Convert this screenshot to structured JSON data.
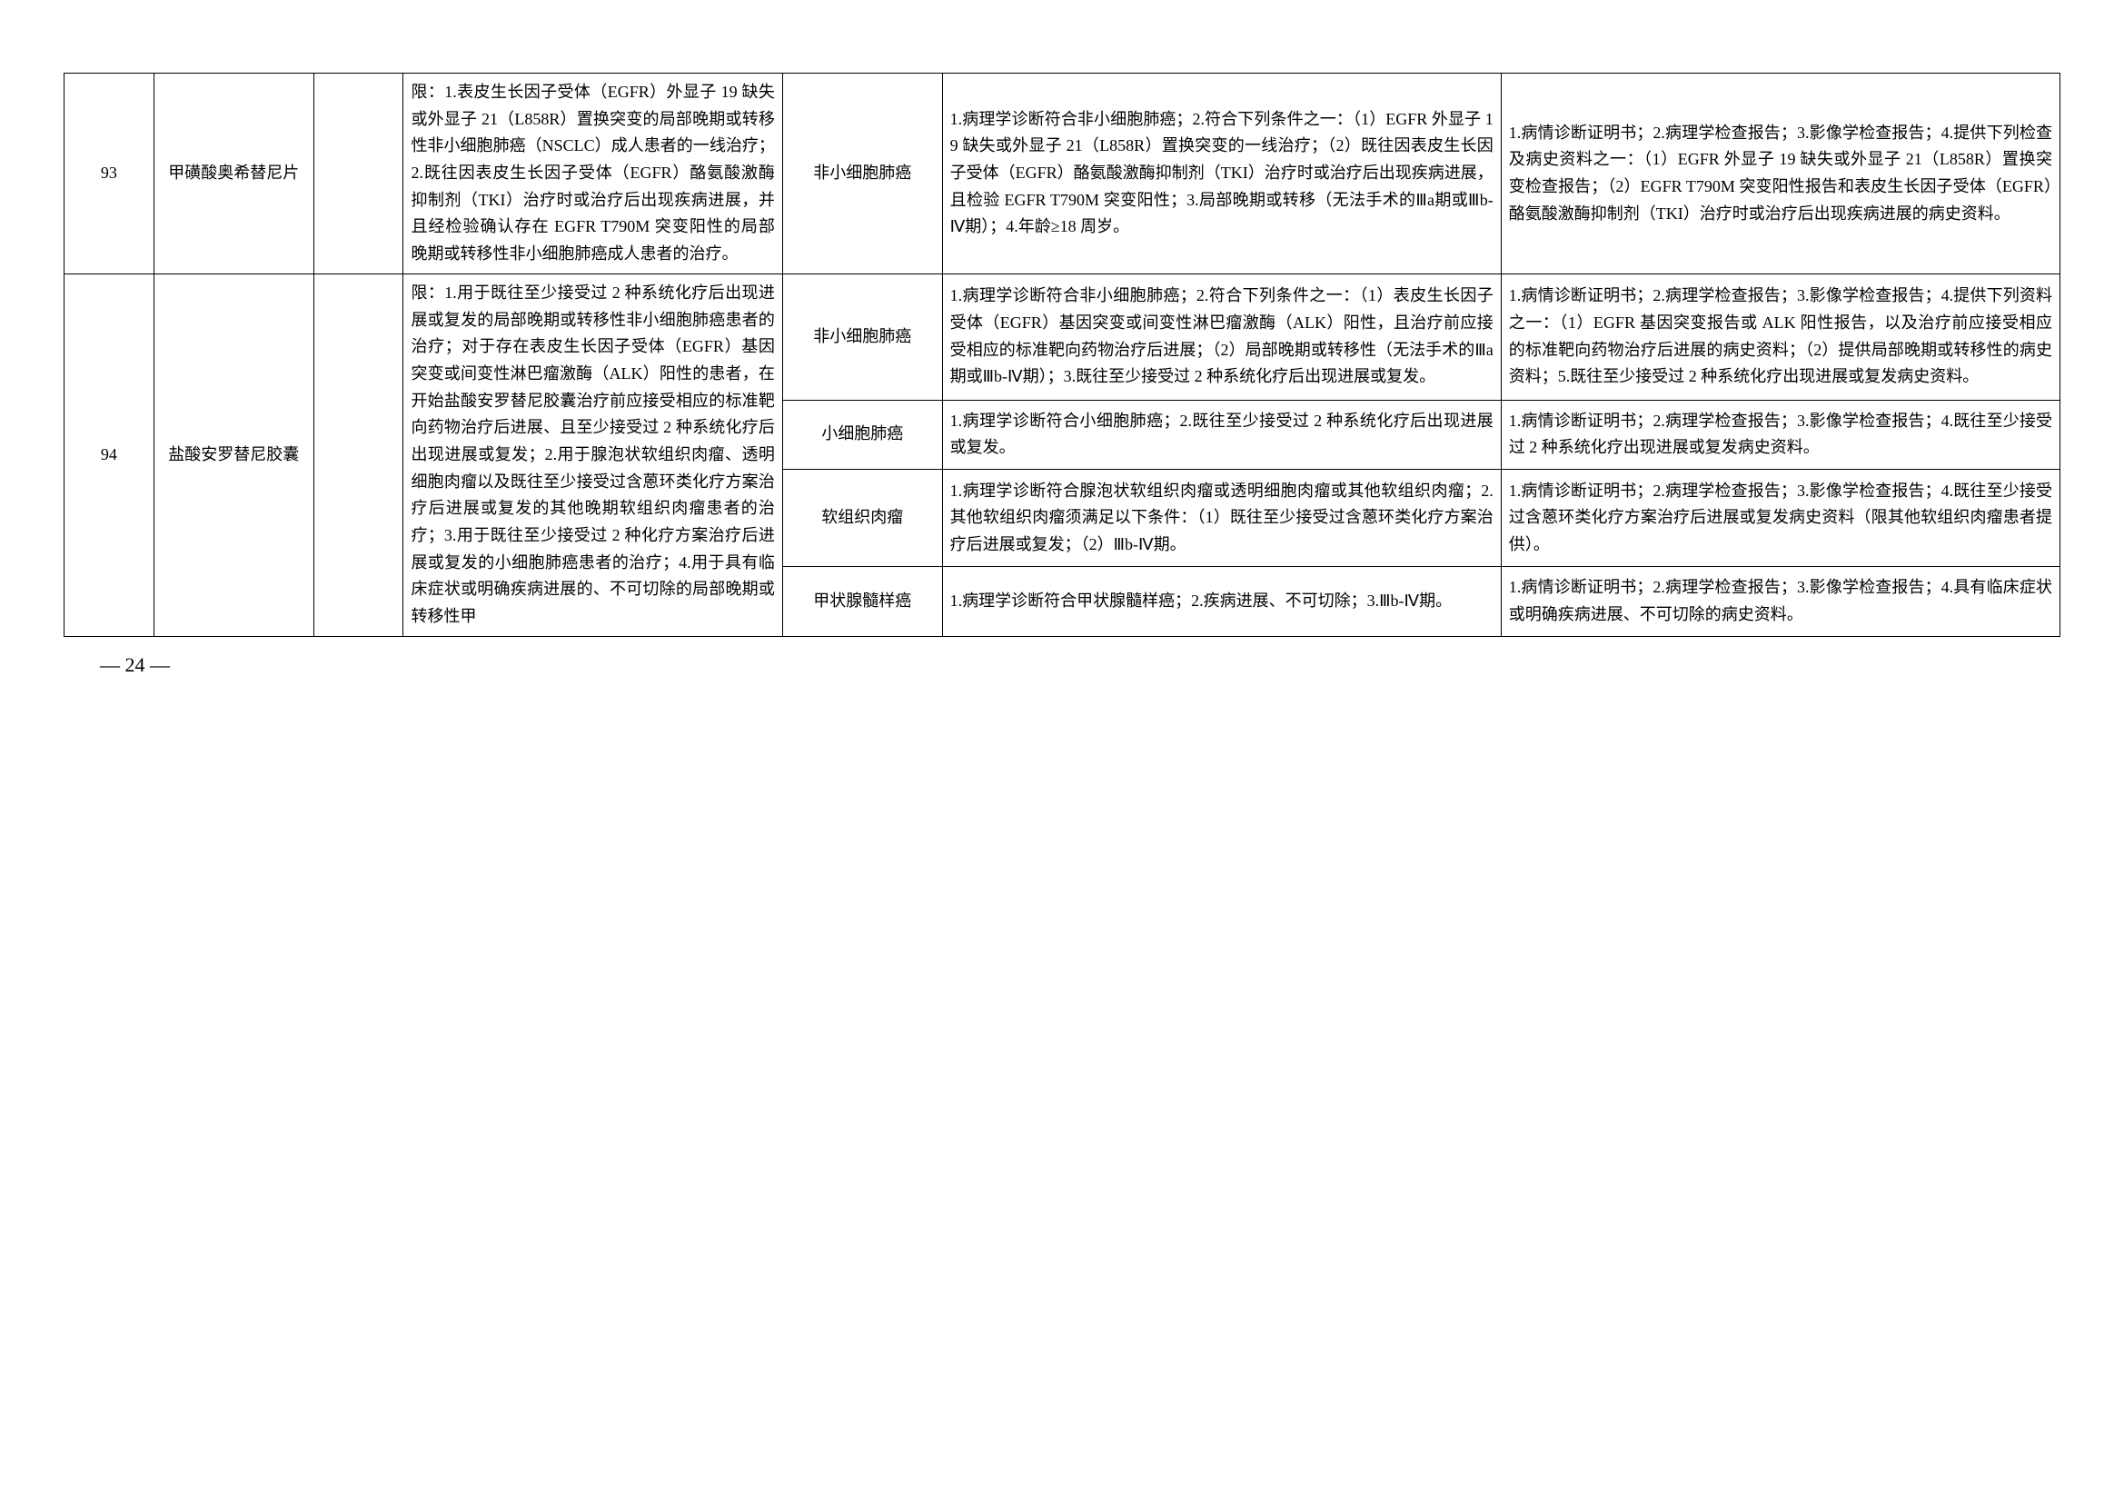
{
  "rows": [
    {
      "idx": "93",
      "drug": "甲磺酸奥希替尼片",
      "limit": "限：1.表皮生长因子受体（EGFR）外显子 19 缺失或外显子 21（L858R）置换突变的局部晚期或转移性非小细胞肺癌（NSCLC）成人患者的一线治疗；2.既往因表皮生长因子受体（EGFR）酪氨酸激酶抑制剂（TKI）治疗时或治疗后出现疾病进展，并且经检验确认存在 EGFR T790M 突变阳性的局部晚期或转移性非小细胞肺癌成人患者的治疗。",
      "disease": "非小细胞肺癌",
      "criteria": "1.病理学诊断符合非小细胞肺癌；2.符合下列条件之一：（1）EGFR 外显子 19 缺失或外显子 21（L858R）置换突变的一线治疗；（2）既往因表皮生长因子受体（EGFR）酪氨酸激酶抑制剂（TKI）治疗时或治疗后出现疾病进展，且检验 EGFR T790M 突变阳性；3.局部晚期或转移（无法手术的Ⅲa期或Ⅲb-Ⅳ期）；4.年龄≥18 周岁。",
      "docs": "1.病情诊断证明书；2.病理学检查报告；3.影像学检查报告；4.提供下列检查及病史资料之一：（1）EGFR 外显子 19 缺失或外显子 21（L858R）置换突变检查报告；（2）EGFR T790M 突变阳性报告和表皮生长因子受体（EGFR）酪氨酸激酶抑制剂（TKI）治疗时或治疗后出现疾病进展的病史资料。"
    },
    {
      "idx": "94",
      "drug": "盐酸安罗替尼胶囊",
      "limit": "限：1.用于既往至少接受过 2 种系统化疗后出现进展或复发的局部晚期或转移性非小细胞肺癌患者的治疗；对于存在表皮生长因子受体（EGFR）基因突变或间变性淋巴瘤激酶（ALK）阳性的患者，在开始盐酸安罗替尼胶囊治疗前应接受相应的标准靶向药物治疗后进展、且至少接受过 2 种系统化疗后出现进展或复发；2.用于腺泡状软组织肉瘤、透明细胞肉瘤以及既往至少接受过含蒽环类化疗方案治疗后进展或复发的其他晚期软组织肉瘤患者的治疗；3.用于既往至少接受过 2 种化疗方案治疗后进展或复发的小细胞肺癌患者的治疗；4.用于具有临床症状或明确疾病进展的、不可切除的局部晚期或转移性甲",
      "sub": [
        {
          "disease": "非小细胞肺癌",
          "criteria": "1.病理学诊断符合非小细胞肺癌；2.符合下列条件之一：（1）表皮生长因子受体（EGFR）基因突变或间变性淋巴瘤激酶（ALK）阳性，且治疗前应接受相应的标准靶向药物治疗后进展；（2）局部晚期或转移性（无法手术的Ⅲa 期或Ⅲb-Ⅳ期）；3.既往至少接受过 2 种系统化疗后出现进展或复发。",
          "docs": "1.病情诊断证明书；2.病理学检查报告；3.影像学检查报告；4.提供下列资料之一：（1）EGFR 基因突变报告或 ALK 阳性报告，以及治疗前应接受相应的标准靶向药物治疗后进展的病史资料；（2）提供局部晚期或转移性的病史资料；5.既往至少接受过 2 种系统化疗出现进展或复发病史资料。"
        },
        {
          "disease": "小细胞肺癌",
          "criteria": "1.病理学诊断符合小细胞肺癌；2.既往至少接受过 2 种系统化疗后出现进展或复发。",
          "docs": "1.病情诊断证明书；2.病理学检查报告；3.影像学检查报告；4.既往至少接受过 2 种系统化疗出现进展或复发病史资料。"
        },
        {
          "disease": "软组织肉瘤",
          "criteria": "1.病理学诊断符合腺泡状软组织肉瘤或透明细胞肉瘤或其他软组织肉瘤；2.其他软组织肉瘤须满足以下条件：（1）既往至少接受过含蒽环类化疗方案治疗后进展或复发；（2）Ⅲb-Ⅳ期。",
          "docs": "1.病情诊断证明书；2.病理学检查报告；3.影像学检查报告；4.既往至少接受过含蒽环类化疗方案治疗后进展或复发病史资料（限其他软组织肉瘤患者提供）。"
        },
        {
          "disease": "甲状腺髓样癌",
          "criteria": "1.病理学诊断符合甲状腺髓样癌；2.疾病进展、不可切除；3.Ⅲb-Ⅳ期。",
          "docs": "1.病情诊断证明书；2.病理学检查报告；3.影像学检查报告；4.具有临床症状或明确疾病进展、不可切除的病史资料。"
        }
      ]
    }
  ],
  "pageNumber": "— 24 —"
}
